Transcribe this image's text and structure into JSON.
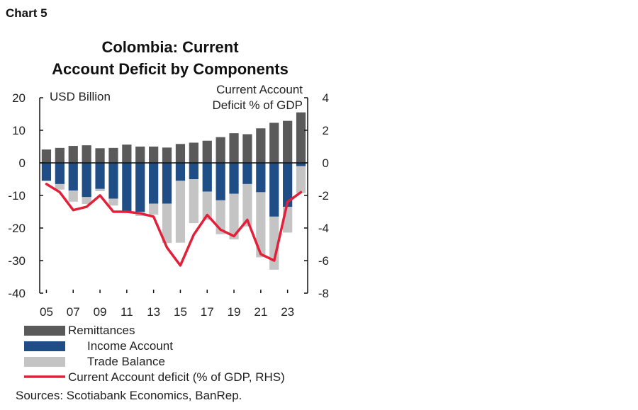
{
  "chart_number": "Chart 5",
  "chart_data": {
    "type": "bar",
    "title": [
      "Colombia: Current",
      "Account Deficit by Components"
    ],
    "left_axis_label": "USD Billion",
    "right_axis_label": [
      "Current Account",
      "Deficit % of GDP"
    ],
    "ylim_left": [
      -40,
      20
    ],
    "ylim_right": [
      -8,
      4
    ],
    "yticks_left": [
      "20",
      "10",
      "0",
      "-10",
      "-20",
      "-30",
      "-40"
    ],
    "yticks_right": [
      "4",
      "2",
      "0",
      "-2",
      "-4",
      "-6",
      "-8"
    ],
    "years": [
      2005,
      2006,
      2007,
      2008,
      2009,
      2010,
      2011,
      2012,
      2013,
      2014,
      2015,
      2016,
      2017,
      2018,
      2019,
      2020,
      2021,
      2022,
      2023,
      2024
    ],
    "xtick_labels": [
      "05",
      "07",
      "09",
      "11",
      "13",
      "15",
      "17",
      "19",
      "21",
      "23"
    ],
    "series": [
      {
        "name": "Remittances",
        "color": "#5a5a5a",
        "values": [
          4.1,
          4.6,
          5.2,
          5.4,
          4.5,
          4.6,
          5.6,
          5.0,
          5.0,
          4.7,
          5.8,
          6.2,
          6.8,
          7.9,
          9.1,
          8.8,
          10.6,
          12.3,
          12.9,
          15.5
        ]
      },
      {
        "name": "Income Account",
        "color": "#1f4e87",
        "values": [
          -5.5,
          -6.5,
          -8.5,
          -10.5,
          -8.0,
          -11.0,
          -15.0,
          -15.0,
          -12.5,
          -12.5,
          -5.5,
          -5.0,
          -8.8,
          -11.5,
          -9.5,
          -6.5,
          -9.0,
          -16.5,
          -13.5,
          -1.0
        ]
      },
      {
        "name": "Trade Balance",
        "color": "#c4c4c4",
        "values": [
          0.0,
          -1.7,
          -3.4,
          -2.1,
          -0.7,
          -2.1,
          -0.4,
          -1.3,
          -3.4,
          -12.1,
          -19.0,
          -13.5,
          -8.7,
          -10.4,
          -14.0,
          -13.0,
          -20.0,
          -16.3,
          -7.9,
          -8.3
        ]
      },
      {
        "name": "Current Account deficit (% of GDP, RHS)",
        "color": "#e3203a",
        "values": [
          -1.3,
          -1.8,
          -2.9,
          -2.7,
          -2.0,
          -3.0,
          -3.0,
          -3.1,
          -3.3,
          -5.2,
          -6.3,
          -4.4,
          -3.2,
          -4.1,
          -4.5,
          -3.5,
          -5.6,
          -6.0,
          -2.4,
          -1.8
        ]
      }
    ]
  },
  "legend": [
    "Remittances",
    "Income Account",
    "Trade Balance",
    "Current Account deficit (% of GDP, RHS)"
  ],
  "source": "Sources: Scotiabank Economics, BanRep."
}
